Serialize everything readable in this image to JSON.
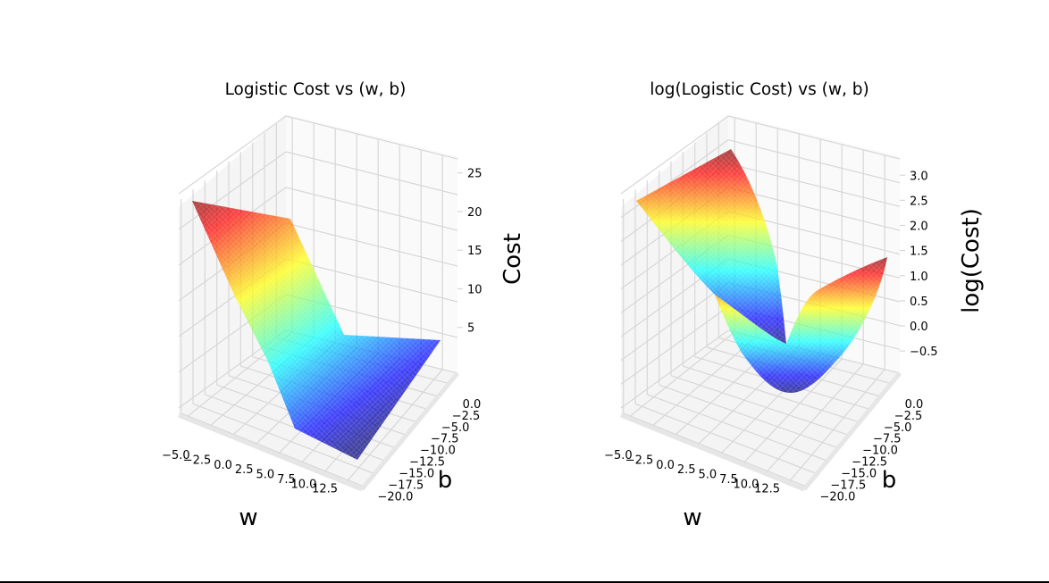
{
  "figure": {
    "background": "#ffffff",
    "colormap": [
      "#00007f",
      "#0000ff",
      "#007fff",
      "#00ffff",
      "#7fff7f",
      "#ffff00",
      "#ff7f00",
      "#ff0000",
      "#7f0000"
    ]
  },
  "chart_data": [
    {
      "type": "surface3d",
      "title": "Logistic Cost vs (w, b)",
      "xlabel": "w",
      "ylabel": "b",
      "zlabel": "Cost",
      "x_ticks": [
        "−5.0",
        "−2.5",
        "0.0",
        "2.5",
        "5.0",
        "7.5",
        "10.0",
        "12.5"
      ],
      "y_ticks": [
        "0.0",
        "−2.5",
        "−5.0",
        "−7.5",
        "−10.0",
        "−12.5",
        "−15.0",
        "−17.5",
        "−20.0"
      ],
      "z_ticks": [
        "5",
        "10",
        "15",
        "20",
        "25"
      ],
      "xlim": [
        -5,
        12.5
      ],
      "ylim": [
        -20,
        0
      ],
      "zlim": [
        0,
        26
      ],
      "colormap": "jet",
      "surface_corners": {
        "w_min_b_max": 22.0,
        "w_max_b_max": 4.0,
        "w_min_b_min": 24.0,
        "w_max_b_min": 0.0
      },
      "grid": true
    },
    {
      "type": "surface3d",
      "title": "log(Logistic Cost) vs (w, b)",
      "xlabel": "w",
      "ylabel": "b",
      "zlabel": "log(Cost)",
      "x_ticks": [
        "−5.0",
        "−2.5",
        "0.0",
        "2.5",
        "5.0",
        "7.5",
        "10.0",
        "12.5"
      ],
      "y_ticks": [
        "0.0",
        "−2.5",
        "−5.0",
        "−7.5",
        "−10.0",
        "−12.5",
        "−15.0",
        "−17.5",
        "−20.0"
      ],
      "z_ticks": [
        "−0.5",
        "0.0",
        "0.5",
        "1.0",
        "1.5",
        "2.0",
        "2.5",
        "3.0"
      ],
      "xlim": [
        -5,
        12.5
      ],
      "ylim": [
        -20,
        0
      ],
      "zlim": [
        -0.8,
        3.2
      ],
      "colormap": "jet",
      "surface_min": -0.5,
      "surface_max": 3.2,
      "grid": true
    }
  ]
}
